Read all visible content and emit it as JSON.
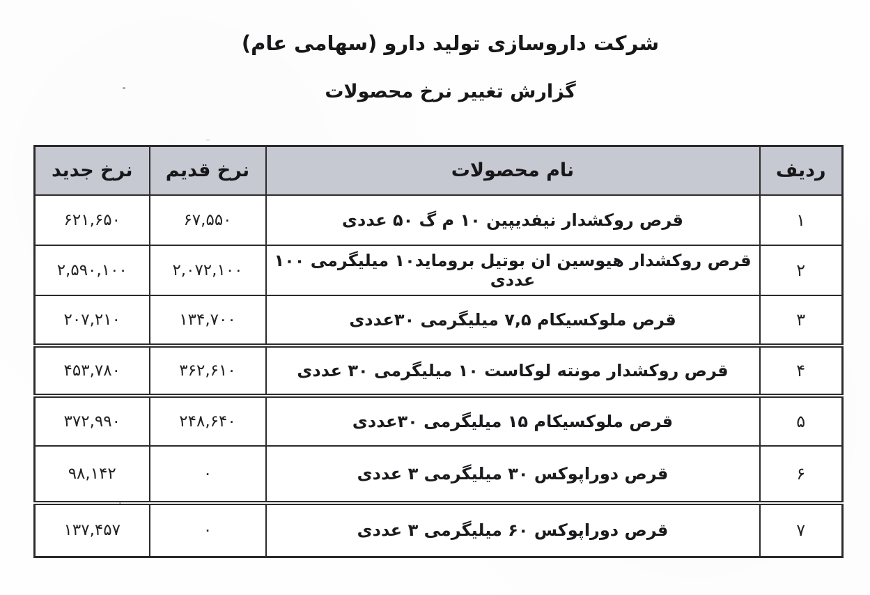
{
  "document": {
    "title": "شرکت داروسازی تولید دارو (سهامی عام)",
    "subtitle": "گزارش تغییر نرخ محصولات"
  },
  "table": {
    "headers": {
      "row_no": "ردیف",
      "product_name": "نام محصولات",
      "old_price": "نرخ قدیم",
      "new_price": "نرخ جدید"
    },
    "rows": [
      {
        "no": "۱",
        "name": "قرص روکشدار نیفدیپین ۱۰ م گ ۵۰ عددی",
        "old": "۶۷,۵۵۰",
        "new": "۶۲۱,۶۵۰"
      },
      {
        "no": "۲",
        "name": "قرص روکشدار هیوسین ان بوتیل بروماید۱۰ میلیگرمی ۱۰۰ عددی",
        "old": "۲,۰۷۲,۱۰۰",
        "new": "۲,۵۹۰,۱۰۰"
      },
      {
        "no": "۳",
        "name": "قرص ملوکسیکام ۷,۵ میلیگرمی ۳۰عددی",
        "old": "۱۳۴,۷۰۰",
        "new": "۲۰۷,۲۱۰"
      },
      {
        "no": "۴",
        "name": "قرص روکشدار مونته لوکاست ۱۰ میلیگرمی ۳۰ عددی",
        "old": "۳۶۲,۶۱۰",
        "new": "۴۵۳,۷۸۰"
      },
      {
        "no": "۵",
        "name": "قرص ملوکسیکام ۱۵ میلیگرمی ۳۰عددی",
        "old": "۲۴۸,۶۴۰",
        "new": "۳۷۲,۹۹۰"
      },
      {
        "no": "۶",
        "name": "قرص دوراپوکس ۳۰ میلیگرمی ۳ عددی",
        "old": "۰",
        "new": "۹۸,۱۴۲"
      },
      {
        "no": "۷",
        "name": "قرص دوراپوکس ۶۰ میلیگرمی ۳ عددی",
        "old": "۰",
        "new": "۱۳۷,۴۵۷"
      }
    ],
    "colors": {
      "header_bg": "#c6c9d1",
      "border": "#2b2b2d",
      "text": "#1d1d1f"
    }
  }
}
